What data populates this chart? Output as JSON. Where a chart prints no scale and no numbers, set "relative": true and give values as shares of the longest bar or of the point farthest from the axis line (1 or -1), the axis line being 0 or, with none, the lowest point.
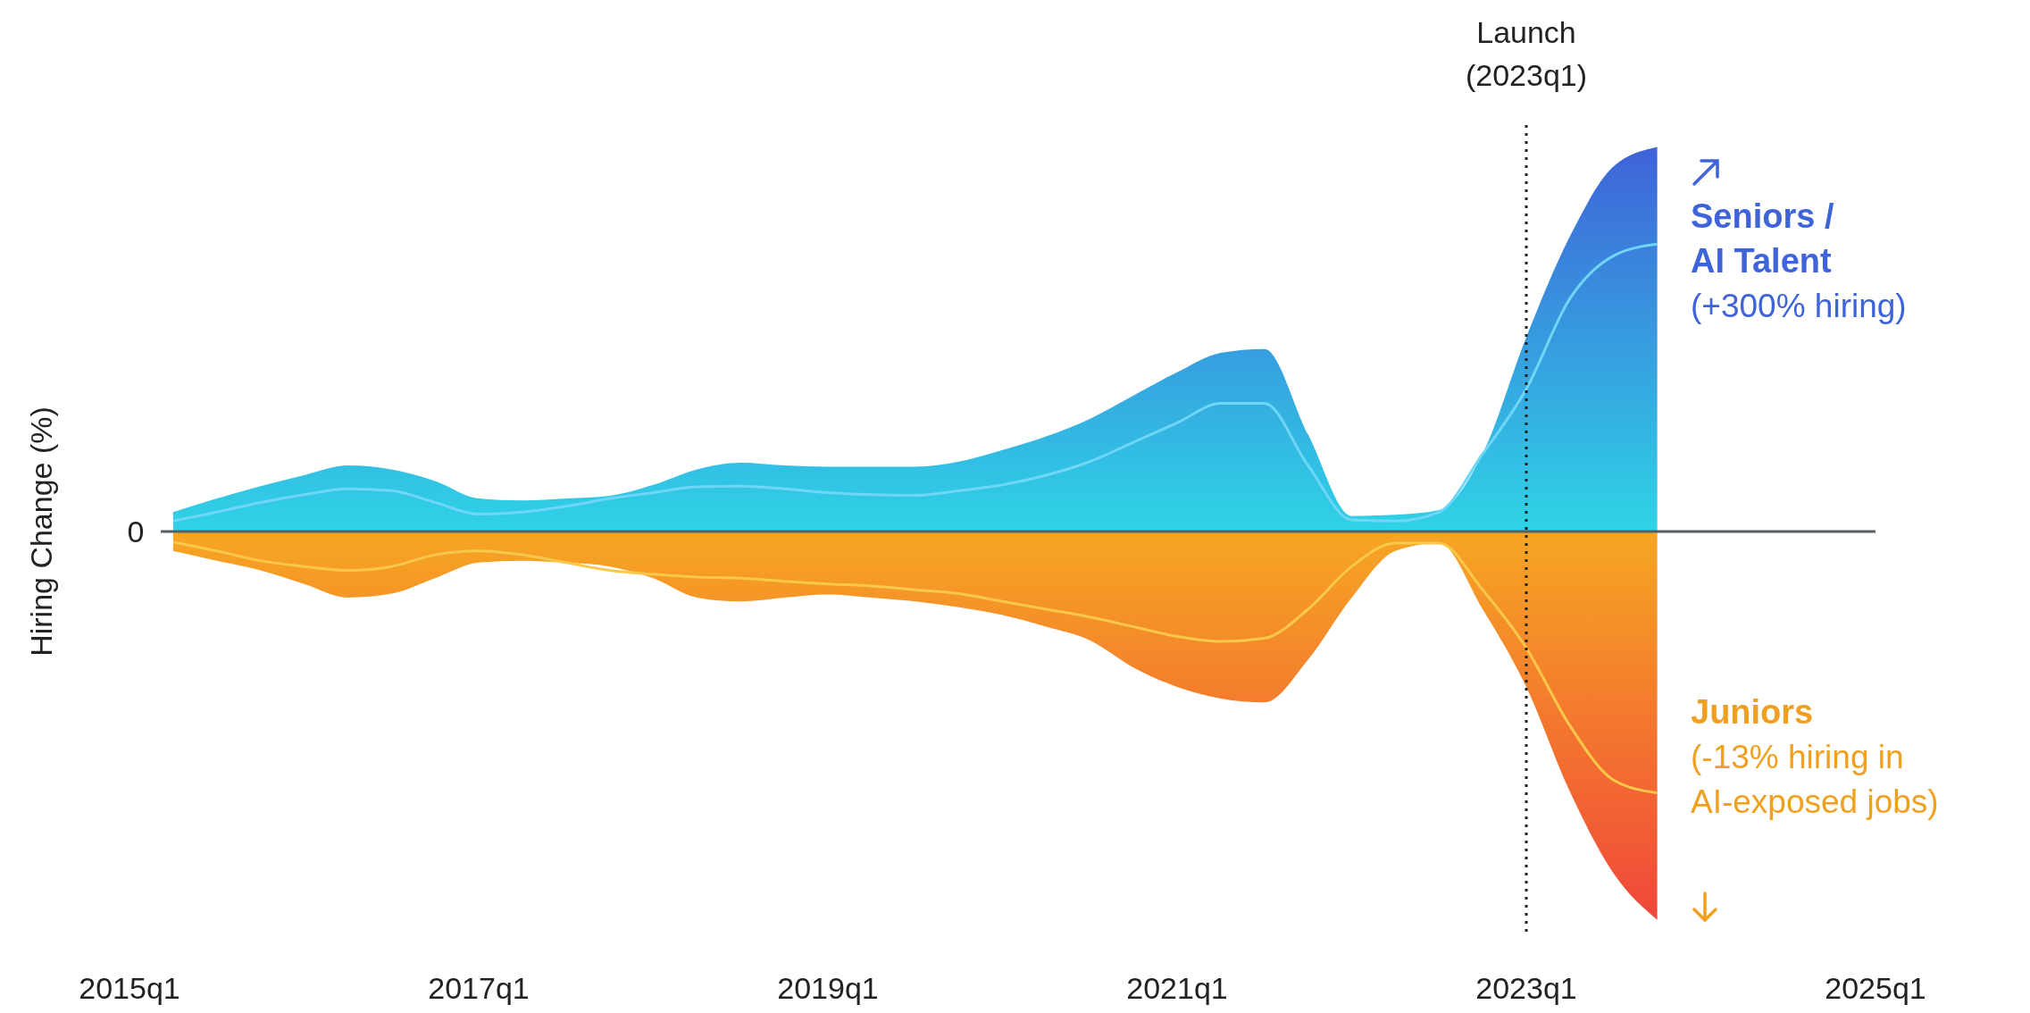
{
  "chart_data": {
    "type": "area",
    "relative": true,
    "ylabel": "Hiring Change (%)",
    "categories": [
      "2015q1",
      null,
      null,
      null,
      null,
      null,
      null,
      null,
      "2017q1",
      null,
      null,
      null,
      null,
      null,
      null,
      null,
      "2019q1",
      null,
      null,
      null,
      null,
      null,
      null,
      null,
      "2021q1",
      null,
      null,
      null,
      null,
      null,
      null,
      null,
      "2023q1",
      null,
      null,
      null,
      null,
      null,
      null,
      null,
      "2025q1"
    ],
    "series": [
      {
        "name": "Seniors / AI Talent",
        "type": "area",
        "color": "#3f63d8",
        "values": [
          null,
          0.05,
          0.085,
          0.117,
          0.145,
          0.17,
          0.16,
          0.13,
          0.085,
          0.08,
          0.085,
          0.092,
          0.12,
          0.16,
          0.177,
          0.17,
          0.167,
          0.167,
          0.167,
          0.18,
          0.21,
          0.245,
          0.29,
          0.35,
          0.41,
          0.46,
          0.47,
          0.25,
          0.04,
          0.043,
          0.055,
          0.2,
          0.5,
          0.76,
          0.94,
          0.99,
          null,
          null,
          null,
          null,
          null
        ]
      },
      {
        "type": "line",
        "color": "#6fd6f7",
        "values": [
          null,
          0.027,
          0.05,
          0.075,
          0.095,
          0.11,
          0.105,
          0.075,
          0.045,
          0.05,
          0.065,
          0.085,
          0.1,
          0.115,
          0.117,
          0.11,
          0.1,
          0.095,
          0.093,
          0.105,
          0.12,
          0.145,
          0.18,
          0.23,
          0.28,
          0.33,
          0.33,
          0.17,
          0.03,
          0.027,
          0.05,
          0.2,
          0.367,
          0.6,
          0.71,
          0.74,
          null,
          null,
          null,
          null,
          null
        ]
      },
      {
        "name": "Juniors",
        "type": "area",
        "color": "#f0473a",
        "values": [
          null,
          -0.05,
          -0.075,
          -0.1,
          -0.135,
          -0.17,
          -0.16,
          -0.12,
          -0.08,
          -0.075,
          -0.08,
          -0.09,
          -0.12,
          -0.17,
          -0.18,
          -0.17,
          -0.162,
          -0.17,
          -0.18,
          -0.195,
          -0.215,
          -0.245,
          -0.28,
          -0.35,
          -0.4,
          -0.43,
          -0.44,
          -0.33,
          -0.17,
          -0.05,
          -0.03,
          -0.2,
          -0.4,
          -0.67,
          -0.88,
          -1,
          null,
          null,
          null,
          null,
          null
        ]
      },
      {
        "type": "line",
        "color": "#f9c84a",
        "values": [
          null,
          -0.027,
          -0.05,
          -0.075,
          -0.09,
          -0.1,
          -0.09,
          -0.06,
          -0.05,
          -0.06,
          -0.08,
          -0.1,
          -0.11,
          -0.117,
          -0.12,
          -0.128,
          -0.135,
          -0.14,
          -0.15,
          -0.16,
          -0.18,
          -0.2,
          -0.22,
          -0.245,
          -0.27,
          -0.283,
          -0.275,
          -0.2,
          -0.09,
          -0.03,
          -0.03,
          -0.15,
          -0.3,
          -0.5,
          -0.64,
          -0.673,
          null,
          null,
          null,
          null,
          null
        ]
      }
    ],
    "ref_lines": [
      {
        "axis": "y",
        "value": 0,
        "label": "0",
        "color": "#555f66",
        "line_style": "solid"
      },
      {
        "axis": "x",
        "value": "2023q1",
        "label": "Launch (2023q1)",
        "color": "#222222",
        "line_style": "dotted"
      }
    ],
    "annotations": [
      "(+300% hiring)",
      "(-13% hiring in AI-exposed jobs)"
    ]
  }
}
